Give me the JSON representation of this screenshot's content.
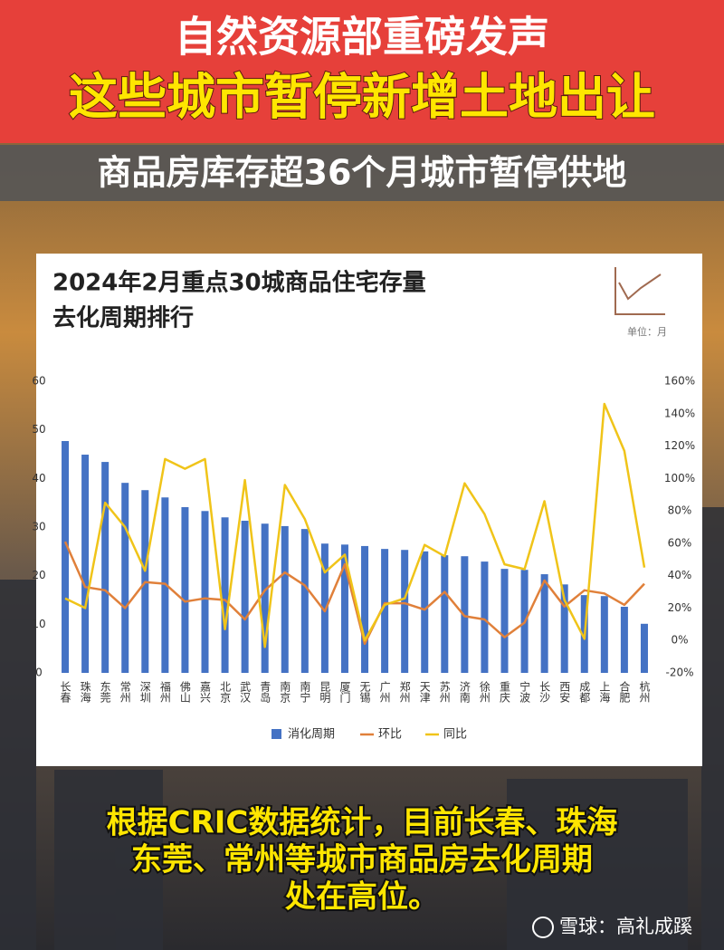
{
  "headline": [
    "自然资源部重磅发声",
    "这些城市暂停新增土地出让"
  ],
  "subheadline": "商品房库存超36个月城市暂停供地",
  "chart_data": {
    "type": "bar",
    "title": [
      "2024年2月重点30城商品住宅存量",
      "去化周期排行"
    ],
    "unit_label": "单位：月",
    "categories": [
      "长春",
      "珠海",
      "东莞",
      "常州",
      "深圳",
      "福州",
      "佛山",
      "嘉兴",
      "北京",
      "武汉",
      "青岛",
      "南京",
      "南宁",
      "昆明",
      "厦门",
      "无锡",
      "广州",
      "郑州",
      "天津",
      "苏州",
      "济南",
      "徐州",
      "重庆",
      "宁波",
      "长沙",
      "西安",
      "成都",
      "上海",
      "合肥",
      "杭州"
    ],
    "series": [
      {
        "name": "消化周期",
        "type": "bar",
        "color": "#4472c4",
        "values": [
          47.7,
          44.9,
          43.4,
          39.1,
          37.6,
          36.1,
          34.1,
          33.3,
          32.0,
          31.3,
          30.7,
          30.2,
          29.6,
          26.6,
          26.4,
          26.1,
          25.5,
          25.3,
          25.0,
          24.2,
          24.0,
          22.9,
          21.4,
          21.2,
          20.3,
          18.2,
          16.0,
          15.8,
          13.6,
          10.1
        ]
      },
      {
        "name": "环比",
        "type": "line",
        "axis": "y2",
        "color": "#e0803a",
        "values": [
          61,
          33,
          31,
          20,
          36,
          35,
          24,
          26,
          25,
          13,
          31,
          42,
          34,
          18,
          47,
          -2,
          23,
          23,
          19,
          30,
          15,
          13,
          2,
          11,
          37,
          21,
          31,
          29,
          22,
          35
        ]
      },
      {
        "name": "同比",
        "type": "line",
        "axis": "y2",
        "color": "#f0c419",
        "values": [
          26,
          20,
          85,
          70,
          43,
          112,
          106,
          112,
          7,
          99,
          -4,
          96,
          75,
          42,
          53,
          0,
          22,
          26,
          59,
          52,
          97,
          78,
          47,
          44,
          86,
          25,
          1,
          146,
          117,
          45
        ]
      }
    ],
    "ylim": [
      0,
      60
    ],
    "yticks": [
      0,
      10,
      20,
      30,
      40,
      50,
      60
    ],
    "y2lim": [
      -20,
      160
    ],
    "y2ticks": [
      {
        "value": -20,
        "label": "-20%"
      },
      {
        "value": 0,
        "label": "0%"
      },
      {
        "value": 20,
        "label": "20%"
      },
      {
        "value": 40,
        "label": "40%"
      },
      {
        "value": 60,
        "label": "60%"
      },
      {
        "value": 80,
        "label": "80%"
      },
      {
        "value": 100,
        "label": "100%"
      },
      {
        "value": 120,
        "label": "120%"
      },
      {
        "value": 140,
        "label": "140%"
      },
      {
        "value": 160,
        "label": "160%"
      }
    ],
    "grid": false
  },
  "caption": [
    "根据CRIC数据统计，目前长春、珠海",
    "东莞、常州等城市商品房去化周期",
    "处在高位。"
  ],
  "watermark": "雪球：高礼成蹊"
}
